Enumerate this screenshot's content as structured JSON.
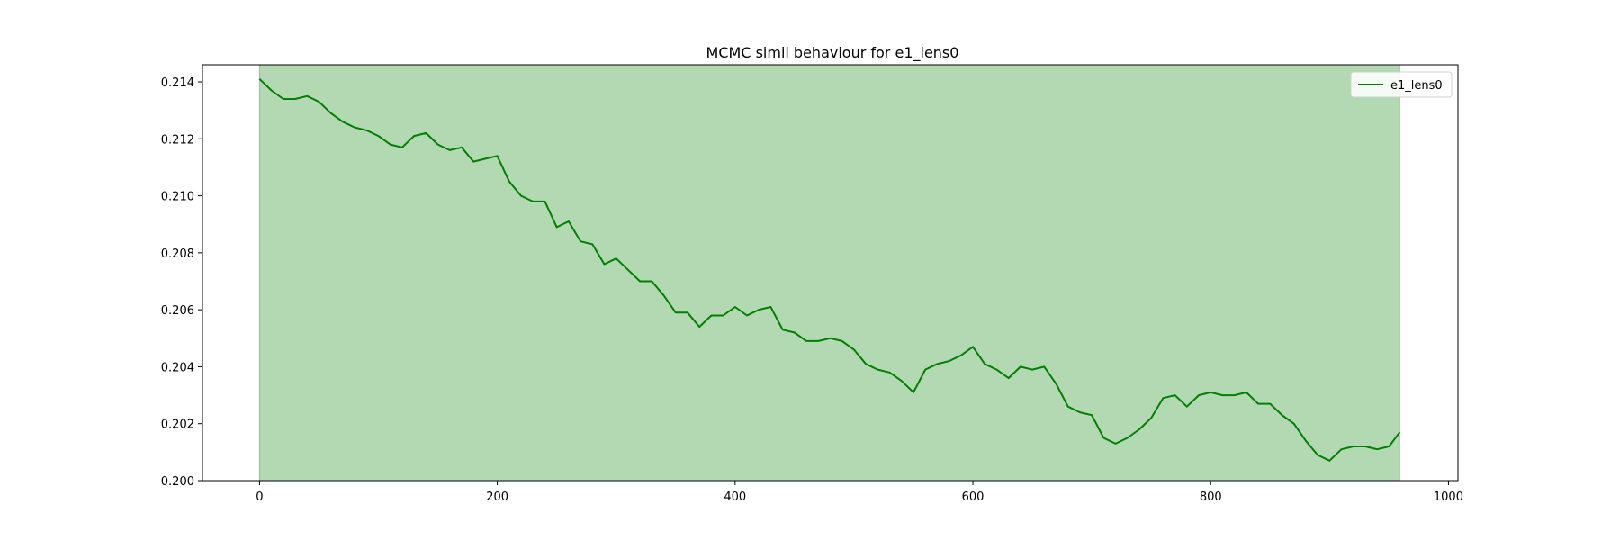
{
  "chart_data": {
    "type": "line",
    "title": "MCMC simil behaviour for e1_lens0",
    "xlabel": "",
    "ylabel": "",
    "xlim": [
      -48,
      1008
    ],
    "ylim": [
      0.2,
      0.2146
    ],
    "x_ticks": [
      0,
      200,
      400,
      600,
      800,
      1000
    ],
    "x_tick_labels": [
      "0",
      "200",
      "400",
      "600",
      "800",
      "1000"
    ],
    "y_ticks": [
      0.2,
      0.202,
      0.204,
      0.206,
      0.208,
      0.21,
      0.212,
      0.214
    ],
    "y_tick_labels": [
      "0.200",
      "0.202",
      "0.204",
      "0.206",
      "0.208",
      "0.210",
      "0.212",
      "0.214"
    ],
    "grid": false,
    "legend": {
      "position": "top-right",
      "entries": [
        "e1_lens0"
      ]
    },
    "shaded_region": {
      "x_start": 0,
      "x_end": 959,
      "color": "#b3d9b3"
    },
    "series": [
      {
        "name": "e1_lens0",
        "color": "#008000",
        "x": [
          0,
          10,
          20,
          30,
          40,
          50,
          60,
          70,
          80,
          90,
          100,
          110,
          120,
          130,
          140,
          150,
          160,
          170,
          180,
          190,
          200,
          210,
          220,
          230,
          240,
          250,
          260,
          270,
          280,
          290,
          300,
          310,
          320,
          330,
          340,
          350,
          360,
          370,
          380,
          390,
          400,
          410,
          420,
          430,
          440,
          450,
          460,
          470,
          480,
          490,
          500,
          510,
          520,
          530,
          540,
          550,
          560,
          570,
          580,
          590,
          600,
          610,
          620,
          630,
          640,
          650,
          660,
          670,
          680,
          690,
          700,
          710,
          720,
          730,
          740,
          750,
          760,
          770,
          780,
          790,
          800,
          810,
          820,
          830,
          840,
          850,
          860,
          870,
          880,
          890,
          900,
          910,
          920,
          930,
          940,
          950,
          959
        ],
        "y": [
          0.2141,
          0.2137,
          0.2134,
          0.2134,
          0.2135,
          0.2133,
          0.2129,
          0.2126,
          0.2124,
          0.2123,
          0.2121,
          0.2118,
          0.2117,
          0.2121,
          0.2122,
          0.2118,
          0.2116,
          0.2117,
          0.2112,
          0.2113,
          0.2114,
          0.2105,
          0.21,
          0.2098,
          0.2098,
          0.2089,
          0.2091,
          0.2084,
          0.2083,
          0.2076,
          0.2078,
          0.2074,
          0.207,
          0.207,
          0.2065,
          0.2059,
          0.2059,
          0.2054,
          0.2058,
          0.2058,
          0.2061,
          0.2058,
          0.206,
          0.2061,
          0.2053,
          0.2052,
          0.2049,
          0.2049,
          0.205,
          0.2049,
          0.2046,
          0.2041,
          0.2039,
          0.2038,
          0.2035,
          0.2031,
          0.2039,
          0.2041,
          0.2042,
          0.2044,
          0.2047,
          0.2041,
          0.2039,
          0.2036,
          0.204,
          0.2039,
          0.204,
          0.2034,
          0.2026,
          0.2024,
          0.2023,
          0.2015,
          0.2013,
          0.2015,
          0.2018,
          0.2022,
          0.2029,
          0.203,
          0.2026,
          0.203,
          0.2031,
          0.203,
          0.203,
          0.2031,
          0.2027,
          0.2027,
          0.2023,
          0.202,
          0.2014,
          0.2009,
          0.2007,
          0.2011,
          0.2012,
          0.2012,
          0.2011,
          0.2012,
          0.2017
        ]
      }
    ]
  }
}
